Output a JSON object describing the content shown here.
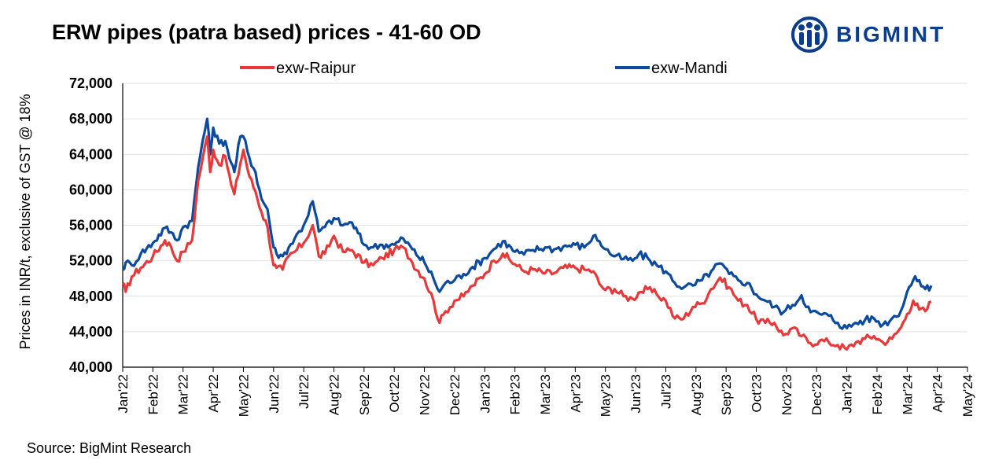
{
  "title": "ERW pipes (patra based) prices - 41-60 OD",
  "logo_text": "BIGMINT",
  "source": "Source: BigMint Research",
  "chart_data": {
    "type": "line",
    "title": "ERW pipes (patra based) prices - 41-60 OD",
    "ylabel": "Prices in INR/t, exclusive of GST @ 18%",
    "xlabel": "",
    "ylim": [
      40000,
      72000
    ],
    "yticks": [
      40000,
      44000,
      48000,
      52000,
      56000,
      60000,
      64000,
      68000,
      72000
    ],
    "ytick_labels": [
      "40,000",
      "44,000",
      "48,000",
      "52,000",
      "56,000",
      "60,000",
      "64,000",
      "68,000",
      "72,000"
    ],
    "xtick_labels": [
      "Jan'22",
      "Feb'22",
      "Mar'22",
      "Apr'22",
      "May'22",
      "Jun'22",
      "Jul'22",
      "Aug'22",
      "Sep'22",
      "Oct'22",
      "Nov'22",
      "Dec'22",
      "Jan'23",
      "Feb'23",
      "Mar'23",
      "Apr'23",
      "May'23",
      "Jun'23",
      "Jul'23",
      "Aug'23",
      "Sep'23",
      "Oct'23",
      "Nov'23",
      "Dec'23",
      "Jan'24",
      "Feb'24",
      "Mar'24",
      "Apr'24",
      "May'24"
    ],
    "legend_position": "top",
    "grid": "horizontal",
    "x_units": "months since Jan'22",
    "series": [
      {
        "name": "exw-Raipur",
        "color": "#e8393a",
        "points": [
          [
            0,
            49500
          ],
          [
            0.1,
            48500
          ],
          [
            0.3,
            50200
          ],
          [
            0.6,
            51200
          ],
          [
            1.0,
            52500
          ],
          [
            1.4,
            54300
          ],
          [
            1.6,
            53600
          ],
          [
            1.8,
            52000
          ],
          [
            2.0,
            53000
          ],
          [
            2.3,
            54300
          ],
          [
            2.5,
            61000
          ],
          [
            2.65,
            63500
          ],
          [
            2.8,
            66000
          ],
          [
            2.9,
            62000
          ],
          [
            3.0,
            64500
          ],
          [
            3.2,
            62800
          ],
          [
            3.4,
            63800
          ],
          [
            3.6,
            60500
          ],
          [
            3.7,
            59500
          ],
          [
            3.9,
            63000
          ],
          [
            4.0,
            64500
          ],
          [
            4.2,
            61500
          ],
          [
            4.4,
            59800
          ],
          [
            4.6,
            57500
          ],
          [
            4.8,
            55800
          ],
          [
            5.0,
            51500
          ],
          [
            5.1,
            51200
          ],
          [
            5.3,
            51000
          ],
          [
            5.5,
            52500
          ],
          [
            5.7,
            53000
          ],
          [
            6.0,
            54000
          ],
          [
            6.3,
            56000
          ],
          [
            6.5,
            52500
          ],
          [
            6.7,
            52800
          ],
          [
            7.0,
            54800
          ],
          [
            7.3,
            53000
          ],
          [
            7.6,
            53200
          ],
          [
            8.0,
            51800
          ],
          [
            8.3,
            51500
          ],
          [
            8.6,
            52300
          ],
          [
            9.0,
            53200
          ],
          [
            9.3,
            53500
          ],
          [
            9.6,
            51800
          ],
          [
            10.0,
            50000
          ],
          [
            10.3,
            47500
          ],
          [
            10.5,
            45000
          ],
          [
            10.7,
            46300
          ],
          [
            11.0,
            47500
          ],
          [
            11.3,
            48000
          ],
          [
            11.6,
            49200
          ],
          [
            12.0,
            50500
          ],
          [
            12.3,
            52000
          ],
          [
            12.6,
            52800
          ],
          [
            13.0,
            51600
          ],
          [
            13.3,
            50800
          ],
          [
            13.6,
            51000
          ],
          [
            14.0,
            50600
          ],
          [
            14.3,
            50600
          ],
          [
            14.6,
            51200
          ],
          [
            15.0,
            51200
          ],
          [
            15.3,
            51000
          ],
          [
            15.6,
            50800
          ],
          [
            15.8,
            49400
          ],
          [
            16.0,
            48700
          ],
          [
            16.3,
            48800
          ],
          [
            16.6,
            48000
          ],
          [
            16.9,
            47700
          ],
          [
            17.1,
            48400
          ],
          [
            17.4,
            48800
          ],
          [
            17.7,
            48200
          ],
          [
            18.0,
            47500
          ],
          [
            18.3,
            45500
          ],
          [
            18.6,
            45500
          ],
          [
            18.9,
            46800
          ],
          [
            19.2,
            47200
          ],
          [
            19.5,
            48800
          ],
          [
            19.8,
            50100
          ],
          [
            20.1,
            49000
          ],
          [
            20.4,
            47500
          ],
          [
            20.7,
            47000
          ],
          [
            21.0,
            45400
          ],
          [
            21.3,
            45000
          ],
          [
            21.6,
            45000
          ],
          [
            21.9,
            43600
          ],
          [
            22.2,
            44400
          ],
          [
            22.5,
            43500
          ],
          [
            22.8,
            42700
          ],
          [
            23.1,
            43000
          ],
          [
            23.4,
            42800
          ],
          [
            23.7,
            42500
          ],
          [
            24.0,
            42000
          ],
          [
            24.3,
            42800
          ],
          [
            24.6,
            43200
          ],
          [
            24.9,
            43500
          ],
          [
            25.2,
            42800
          ],
          [
            25.5,
            43200
          ],
          [
            25.8,
            44500
          ],
          [
            26.0,
            46000
          ],
          [
            26.2,
            47500
          ],
          [
            26.4,
            46500
          ],
          [
            26.6,
            46300
          ],
          [
            26.8,
            47400
          ]
        ]
      },
      {
        "name": "exw-Mandi",
        "color": "#0b4a9e",
        "points": [
          [
            0,
            51000
          ],
          [
            0.1,
            51800
          ],
          [
            0.3,
            51500
          ],
          [
            0.6,
            52800
          ],
          [
            1.0,
            54000
          ],
          [
            1.4,
            55700
          ],
          [
            1.6,
            55200
          ],
          [
            1.8,
            54300
          ],
          [
            2.0,
            55800
          ],
          [
            2.3,
            56500
          ],
          [
            2.5,
            62500
          ],
          [
            2.65,
            65500
          ],
          [
            2.8,
            68000
          ],
          [
            2.9,
            64000
          ],
          [
            3.0,
            67000
          ],
          [
            3.2,
            65200
          ],
          [
            3.4,
            65500
          ],
          [
            3.6,
            63000
          ],
          [
            3.7,
            62000
          ],
          [
            3.9,
            66000
          ],
          [
            4.0,
            66000
          ],
          [
            4.2,
            63600
          ],
          [
            4.4,
            62000
          ],
          [
            4.6,
            59000
          ],
          [
            4.8,
            57800
          ],
          [
            5.0,
            53500
          ],
          [
            5.1,
            52800
          ],
          [
            5.3,
            52500
          ],
          [
            5.5,
            53500
          ],
          [
            5.7,
            54500
          ],
          [
            6.0,
            56000
          ],
          [
            6.3,
            58700
          ],
          [
            6.5,
            55300
          ],
          [
            6.7,
            55800
          ],
          [
            7.0,
            56800
          ],
          [
            7.3,
            56000
          ],
          [
            7.6,
            56300
          ],
          [
            8.0,
            53800
          ],
          [
            8.3,
            53500
          ],
          [
            8.6,
            53800
          ],
          [
            9.0,
            53800
          ],
          [
            9.3,
            54500
          ],
          [
            9.6,
            53300
          ],
          [
            10.0,
            51800
          ],
          [
            10.3,
            50000
          ],
          [
            10.5,
            48500
          ],
          [
            10.7,
            49500
          ],
          [
            11.0,
            49800
          ],
          [
            11.3,
            50500
          ],
          [
            11.6,
            51300
          ],
          [
            12.0,
            52300
          ],
          [
            12.3,
            53300
          ],
          [
            12.6,
            54200
          ],
          [
            13.0,
            53000
          ],
          [
            13.3,
            52700
          ],
          [
            13.6,
            53200
          ],
          [
            14.0,
            53500
          ],
          [
            14.3,
            53300
          ],
          [
            14.6,
            53600
          ],
          [
            15.0,
            53800
          ],
          [
            15.3,
            53500
          ],
          [
            15.6,
            54800
          ],
          [
            15.8,
            54200
          ],
          [
            16.0,
            53300
          ],
          [
            16.3,
            52500
          ],
          [
            16.6,
            52200
          ],
          [
            16.9,
            52000
          ],
          [
            17.1,
            52700
          ],
          [
            17.4,
            52300
          ],
          [
            17.7,
            51500
          ],
          [
            18.0,
            50800
          ],
          [
            18.3,
            49500
          ],
          [
            18.6,
            49000
          ],
          [
            18.9,
            49200
          ],
          [
            19.2,
            49800
          ],
          [
            19.5,
            50800
          ],
          [
            19.8,
            51700
          ],
          [
            20.1,
            50500
          ],
          [
            20.4,
            49800
          ],
          [
            20.7,
            49500
          ],
          [
            21.0,
            48200
          ],
          [
            21.3,
            47500
          ],
          [
            21.6,
            46800
          ],
          [
            21.9,
            46200
          ],
          [
            22.2,
            47000
          ],
          [
            22.5,
            48100
          ],
          [
            22.8,
            46200
          ],
          [
            23.1,
            46000
          ],
          [
            23.4,
            45800
          ],
          [
            23.7,
            45000
          ],
          [
            24.0,
            44400
          ],
          [
            24.3,
            45000
          ],
          [
            24.6,
            45300
          ],
          [
            24.9,
            45500
          ],
          [
            25.2,
            44800
          ],
          [
            25.5,
            45500
          ],
          [
            25.8,
            46400
          ],
          [
            26.0,
            48500
          ],
          [
            26.2,
            49800
          ],
          [
            26.4,
            49800
          ],
          [
            26.6,
            48800
          ],
          [
            26.8,
            49200
          ]
        ]
      }
    ]
  }
}
